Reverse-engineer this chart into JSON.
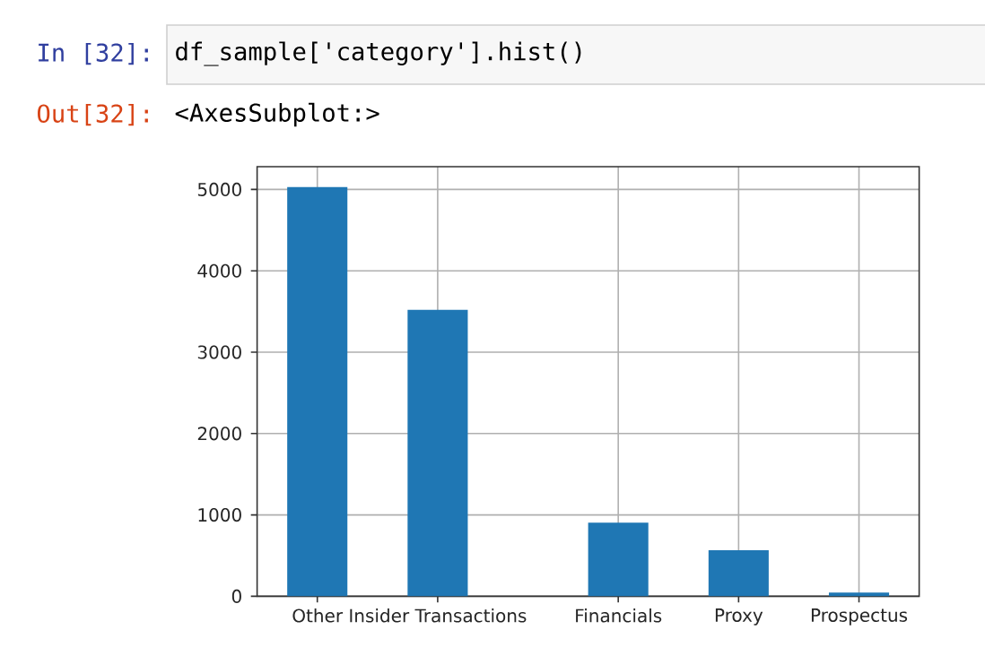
{
  "chart_data": {
    "type": "bar",
    "annotations": [
      "In [32]:",
      "df_sample['category'].hist()",
      "Out[32]:",
      "<AxesSubplot:>"
    ],
    "values": [
      5030,
      0,
      3520,
      0,
      0,
      905,
      0,
      567,
      0,
      45
    ],
    "color": "#1f77b4",
    "ylim": [
      0,
      5280
    ],
    "categories": [
      "Other",
      null,
      "Insider Transactions",
      null,
      null,
      "Financials",
      null,
      "Proxy",
      null,
      "Prospectus"
    ],
    "yticks": [
      0,
      1000,
      2000,
      3000,
      4000,
      5000
    ],
    "grid": true
  }
}
